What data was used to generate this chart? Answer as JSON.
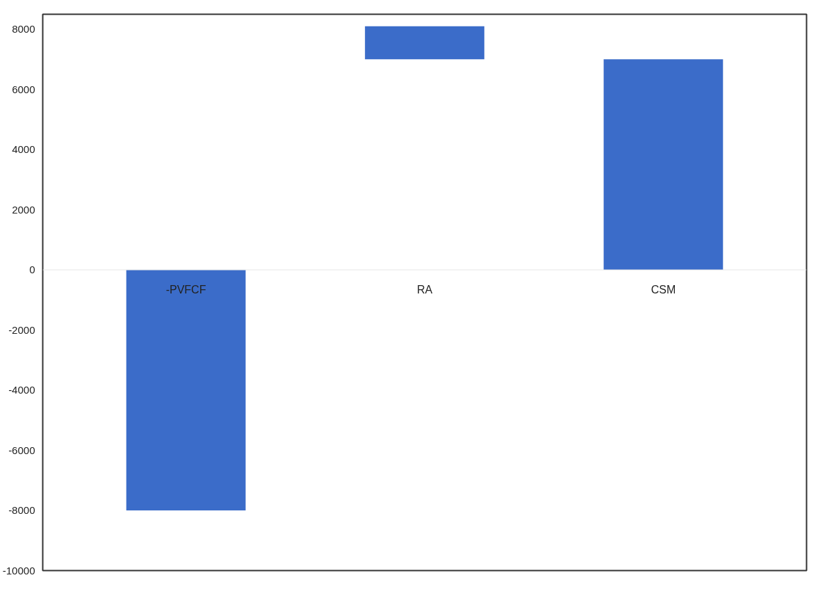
{
  "chart_data": {
    "type": "bar",
    "categories": [
      "-PVFCF",
      "RA",
      "CSM"
    ],
    "values": [
      -8000,
      1100,
      7000
    ],
    "base": [
      0,
      7000,
      0
    ],
    "color": "#3b6cc9",
    "ylim": [
      -10000,
      8500
    ],
    "yticks": [
      -10000,
      -8000,
      -6000,
      -4000,
      -2000,
      0,
      2000,
      4000,
      6000,
      8000
    ],
    "grid": false
  }
}
